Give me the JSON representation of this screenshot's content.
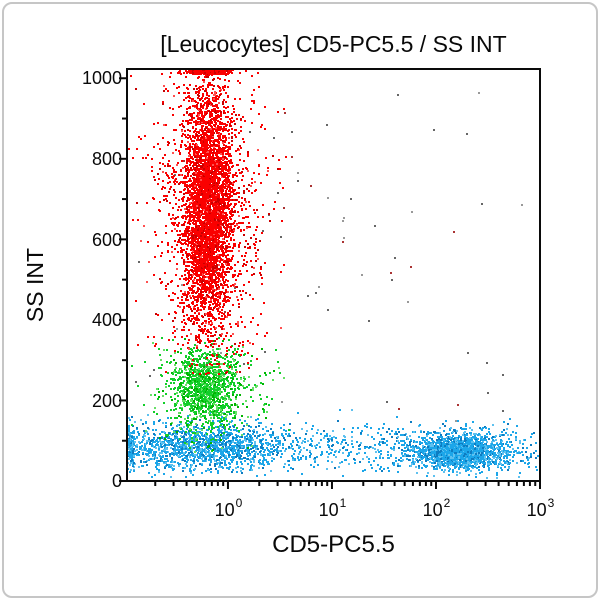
{
  "chart_data": {
    "type": "scatter",
    "subtype": "flow-cytometry-dot-plot",
    "title": "[Leucocytes] CD5-PC5.5 / SS INT",
    "xlabel": "CD5-PC5.5",
    "ylabel": "SS INT",
    "x_scale": "log",
    "x_range": [
      0.107,
      1000
    ],
    "x_ticks": [
      {
        "base": "10",
        "exp": "0"
      },
      {
        "base": "10",
        "exp": "1"
      },
      {
        "base": "10",
        "exp": "2"
      },
      {
        "base": "10",
        "exp": "3"
      }
    ],
    "x_decades": [
      0,
      1,
      2,
      3
    ],
    "y_scale": "linear",
    "y_range": [
      0,
      1023
    ],
    "y_tick_labels": [
      "1000",
      "800",
      "600",
      "400",
      "200",
      "0"
    ],
    "y_major_step": 200,
    "y_minor_step": 100,
    "grid": false,
    "legend": "none",
    "population_colors": {
      "granulocytes": "#fa0000",
      "monocytes": "#12ce2a",
      "lymphocytes": "#1ca6e9"
    },
    "populations": [
      {
        "name": "sparse-noise",
        "n": 70,
        "color": [
          [
            "#666666",
            0.45
          ],
          [
            "#999999",
            0.3
          ],
          [
            "#aa3333",
            0.25
          ]
        ],
        "x": {
          "dist": "loguniform",
          "min": 0.12,
          "max": 900
        },
        "y": {
          "dist": "uniform",
          "min": 120,
          "max": 1000
        }
      },
      {
        "name": "cd5neg-band",
        "n": 750,
        "color": [
          [
            "#1ca6e9",
            0.6
          ],
          [
            "#0e7cc1",
            0.18
          ],
          [
            "#5ec1ef",
            0.22
          ]
        ],
        "x": {
          "dist": "loguniform",
          "min": 0.11,
          "max": 950
        },
        "y": {
          "dist": "normal",
          "mu": 82,
          "sigma": 30,
          "min": 8,
          "max": 190
        }
      },
      {
        "name": "band-left-edge-pileup",
        "n": 140,
        "color": [
          [
            "#1ca6e9",
            0.6
          ],
          [
            "#0e7cc1",
            0.18
          ],
          [
            "#5ec1ef",
            0.22
          ]
        ],
        "x": {
          "dist": "loguniform",
          "min": 0.108,
          "max": 0.125
        },
        "y": {
          "dist": "normal",
          "mu": 85,
          "sigma": 28,
          "min": 10,
          "max": 180
        }
      },
      {
        "name": "cd5neg-lymphocytes",
        "n": 1150,
        "color": [
          [
            "#1ca6e9",
            0.6
          ],
          [
            "#0e7cc1",
            0.18
          ],
          [
            "#5ec1ef",
            0.22
          ]
        ],
        "x": {
          "dist": "lognormal",
          "mu": -0.25,
          "sigma": 0.42
        },
        "y": {
          "dist": "normal",
          "mu": 85,
          "sigma": 30,
          "min": 8,
          "max": 200
        }
      },
      {
        "name": "cd5pos-t-lymphocytes-halo",
        "n": 600,
        "color": [
          [
            "#1ca6e9",
            0.6
          ],
          [
            "#0e7cc1",
            0.18
          ],
          [
            "#5ec1ef",
            0.22
          ]
        ],
        "x": {
          "dist": "lognormal",
          "mu": 2.2,
          "sigma": 0.32
        },
        "y": {
          "dist": "normal",
          "mu": 75,
          "sigma": 30,
          "min": 8,
          "max": 220
        }
      },
      {
        "name": "cd5pos-t-lymphocytes",
        "n": 1700,
        "color": [
          [
            "#1ca6e9",
            0.62
          ],
          [
            "#0e7cc1",
            0.16
          ],
          [
            "#5ec1ef",
            0.22
          ]
        ],
        "x": {
          "dist": "lognormal",
          "mu": 2.21,
          "sigma": 0.17
        },
        "y": {
          "dist": "normal",
          "mu": 72,
          "sigma": 16,
          "min": 10,
          "max": 170
        }
      },
      {
        "name": "monocytes-halo",
        "n": 450,
        "color": [
          [
            "#12ce2a",
            0.62
          ],
          [
            "#00b400",
            0.18
          ],
          [
            "#66e066",
            0.2
          ]
        ],
        "x": {
          "dist": "lognormal",
          "mu": -0.2,
          "sigma": 0.28
        },
        "y": {
          "dist": "normal",
          "mu": 225,
          "sigma": 75,
          "min": 60,
          "max": 360
        }
      },
      {
        "name": "monocytes",
        "n": 950,
        "color": [
          [
            "#12ce2a",
            0.62
          ],
          [
            "#00b400",
            0.18
          ],
          [
            "#66e066",
            0.2
          ]
        ],
        "x": {
          "dist": "lognormal",
          "mu": -0.22,
          "sigma": 0.14
        },
        "y": {
          "dist": "normal",
          "mu": 235,
          "sigma": 45,
          "min": 95,
          "max": 330
        }
      },
      {
        "name": "granulocytes-halo",
        "n": 1400,
        "color": [
          [
            "#fa0000",
            0.82
          ],
          [
            "#c80000",
            0.1
          ],
          [
            "#ff5050",
            0.08
          ]
        ],
        "x": {
          "dist": "lognormal",
          "mu": -0.19,
          "sigma": 0.26
        },
        "y": {
          "dist": "normal",
          "mu": 660,
          "sigma": 210,
          "min": 260,
          "max": 1023
        }
      },
      {
        "name": "granulocytes",
        "n": 3600,
        "color": [
          [
            "#fa0000",
            0.84
          ],
          [
            "#c80000",
            0.1
          ],
          [
            "#ff5050",
            0.06
          ]
        ],
        "x": {
          "dist": "lognormal",
          "mu": -0.19,
          "sigma": 0.11
        },
        "y": {
          "dist": "normal",
          "mu": 680,
          "sigma": 155,
          "min": 330,
          "max": 1023
        }
      },
      {
        "name": "granulocytes-pileup",
        "n": 300,
        "color": [
          [
            "#fa0000",
            0.9
          ],
          [
            "#c80000",
            0.1
          ]
        ],
        "x": {
          "dist": "lognormal",
          "mu": -0.19,
          "sigma": 0.13
        },
        "y": {
          "dist": "uniform",
          "min": 1010,
          "max": 1023
        }
      }
    ]
  }
}
